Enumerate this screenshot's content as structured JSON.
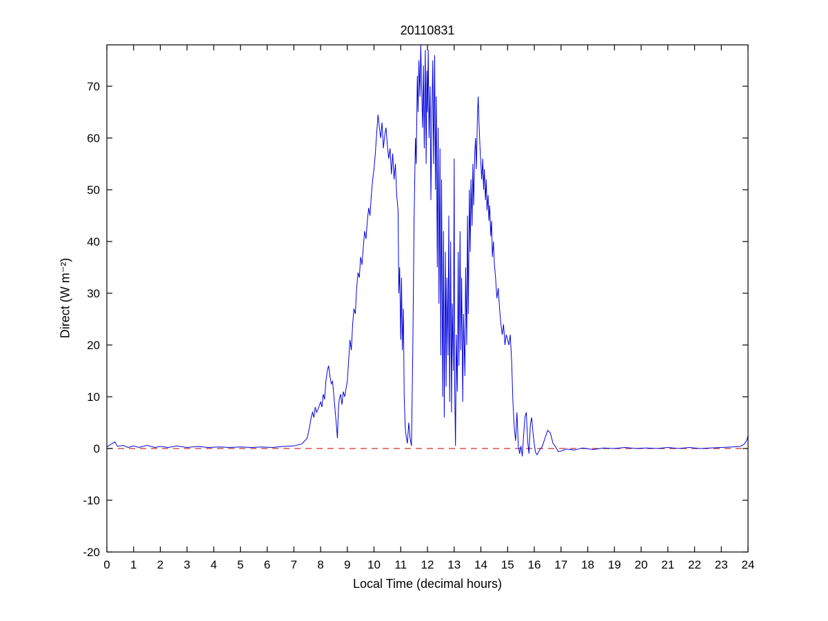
{
  "figure": {
    "title": "20110831",
    "xlabel": "Local Time (decimal hours)",
    "ylabel": "Direct (W m⁻²)"
  },
  "chart_data": {
    "type": "line",
    "title": "20110831",
    "xlabel": "Local Time (decimal hours)",
    "ylabel": "Direct (W m⁻²)",
    "xlim": [
      0,
      24
    ],
    "ylim": [
      -20,
      78
    ],
    "xticks": [
      0,
      1,
      2,
      3,
      4,
      5,
      6,
      7,
      8,
      9,
      10,
      11,
      12,
      13,
      14,
      15,
      16,
      17,
      18,
      19,
      20,
      21,
      22,
      23,
      24
    ],
    "yticks": [
      -20,
      -10,
      0,
      10,
      20,
      30,
      40,
      50,
      60,
      70
    ],
    "grid": false,
    "legend": "none",
    "line_color": "#0000dd",
    "axis_color": "#000000",
    "zero_line": {
      "y": 0,
      "color": "#cc3322",
      "style": "dashed",
      "dash": [
        9,
        7
      ]
    },
    "series": [
      {
        "name": "Direct",
        "points": [
          [
            0,
            0.3
          ],
          [
            0.15,
            0.8
          ],
          [
            0.3,
            1.3
          ],
          [
            0.4,
            0.4
          ],
          [
            0.6,
            0.6
          ],
          [
            0.8,
            0.2
          ],
          [
            1,
            0.5
          ],
          [
            1.2,
            0.2
          ],
          [
            1.5,
            0.6
          ],
          [
            1.8,
            0.2
          ],
          [
            2,
            0.4
          ],
          [
            2.3,
            0.2
          ],
          [
            2.6,
            0.5
          ],
          [
            3,
            0.2
          ],
          [
            3.4,
            0.4
          ],
          [
            3.8,
            0.2
          ],
          [
            4.2,
            0.3
          ],
          [
            4.6,
            0.2
          ],
          [
            5,
            0.3
          ],
          [
            5.4,
            0.2
          ],
          [
            5.8,
            0.3
          ],
          [
            6.2,
            0.2
          ],
          [
            6.6,
            0.4
          ],
          [
            7,
            0.5
          ],
          [
            7.3,
            0.9
          ],
          [
            7.5,
            2
          ],
          [
            7.6,
            4.5
          ],
          [
            7.65,
            6
          ],
          [
            7.7,
            7
          ],
          [
            7.75,
            6
          ],
          [
            7.8,
            8
          ],
          [
            7.85,
            7
          ],
          [
            7.9,
            7.5
          ],
          [
            8,
            9
          ],
          [
            8.05,
            8
          ],
          [
            8.1,
            10.5
          ],
          [
            8.15,
            9.5
          ],
          [
            8.2,
            13
          ],
          [
            8.25,
            15
          ],
          [
            8.3,
            16
          ],
          [
            8.35,
            14
          ],
          [
            8.4,
            12.5
          ],
          [
            8.45,
            13
          ],
          [
            8.5,
            10
          ],
          [
            8.55,
            7
          ],
          [
            8.6,
            4
          ],
          [
            8.63,
            2
          ],
          [
            8.67,
            8
          ],
          [
            8.7,
            9.5
          ],
          [
            8.75,
            10.5
          ],
          [
            8.8,
            8.5
          ],
          [
            8.85,
            11
          ],
          [
            8.9,
            10
          ],
          [
            8.95,
            11.5
          ],
          [
            9,
            13
          ],
          [
            9.05,
            17
          ],
          [
            9.1,
            21
          ],
          [
            9.15,
            19
          ],
          [
            9.2,
            24
          ],
          [
            9.25,
            27
          ],
          [
            9.3,
            26
          ],
          [
            9.35,
            31
          ],
          [
            9.4,
            34
          ],
          [
            9.45,
            33
          ],
          [
            9.5,
            37
          ],
          [
            9.55,
            35.5
          ],
          [
            9.6,
            39
          ],
          [
            9.65,
            42
          ],
          [
            9.7,
            40.5
          ],
          [
            9.75,
            44
          ],
          [
            9.8,
            46.5
          ],
          [
            9.85,
            45
          ],
          [
            9.9,
            49
          ],
          [
            9.95,
            52
          ],
          [
            10,
            54
          ],
          [
            10.05,
            57
          ],
          [
            10.1,
            61
          ],
          [
            10.15,
            64.5
          ],
          [
            10.2,
            62
          ],
          [
            10.25,
            60
          ],
          [
            10.3,
            63
          ],
          [
            10.35,
            58
          ],
          [
            10.4,
            60.5
          ],
          [
            10.45,
            62
          ],
          [
            10.5,
            58.5
          ],
          [
            10.55,
            56
          ],
          [
            10.6,
            58
          ],
          [
            10.65,
            53
          ],
          [
            10.7,
            57
          ],
          [
            10.75,
            52
          ],
          [
            10.8,
            55
          ],
          [
            10.85,
            49
          ],
          [
            10.9,
            46
          ],
          [
            10.93,
            30
          ],
          [
            10.96,
            35
          ],
          [
            11,
            21
          ],
          [
            11.03,
            33
          ],
          [
            11.06,
            19
          ],
          [
            11.1,
            27
          ],
          [
            11.13,
            10
          ],
          [
            11.17,
            4
          ],
          [
            11.2,
            2.5
          ],
          [
            11.25,
            1
          ],
          [
            11.3,
            5
          ],
          [
            11.35,
            2
          ],
          [
            11.4,
            0.5
          ],
          [
            11.45,
            18
          ],
          [
            11.5,
            44
          ],
          [
            11.55,
            60
          ],
          [
            11.58,
            55
          ],
          [
            11.62,
            72
          ],
          [
            11.65,
            65
          ],
          [
            11.68,
            75
          ],
          [
            11.72,
            68
          ],
          [
            11.75,
            78
          ],
          [
            11.78,
            70
          ],
          [
            11.82,
            62
          ],
          [
            11.85,
            74
          ],
          [
            11.88,
            58
          ],
          [
            11.92,
            77
          ],
          [
            11.95,
            55
          ],
          [
            11.98,
            73
          ],
          [
            12,
            65
          ],
          [
            12.03,
            77
          ],
          [
            12.06,
            60
          ],
          [
            12.1,
            70
          ],
          [
            12.13,
            48
          ],
          [
            12.17,
            66
          ],
          [
            12.2,
            75
          ],
          [
            12.23,
            55
          ],
          [
            12.27,
            76
          ],
          [
            12.3,
            50
          ],
          [
            12.33,
            68
          ],
          [
            12.37,
            35
          ],
          [
            12.4,
            62
          ],
          [
            12.43,
            28
          ],
          [
            12.47,
            58
          ],
          [
            12.5,
            18
          ],
          [
            12.53,
            52
          ],
          [
            12.57,
            10
          ],
          [
            12.6,
            42
          ],
          [
            12.63,
            6
          ],
          [
            12.67,
            38
          ],
          [
            12.7,
            12
          ],
          [
            12.73,
            33
          ],
          [
            12.77,
            18
          ],
          [
            12.8,
            45
          ],
          [
            12.83,
            9
          ],
          [
            12.87,
            40
          ],
          [
            12.9,
            7
          ],
          [
            12.93,
            28
          ],
          [
            12.97,
            15
          ],
          [
            13,
            56
          ],
          [
            13.02,
            12
          ],
          [
            13.05,
            0.5
          ],
          [
            13.08,
            22
          ],
          [
            13.12,
            11
          ],
          [
            13.15,
            38
          ],
          [
            13.18,
            16
          ],
          [
            13.22,
            42
          ],
          [
            13.25,
            19
          ],
          [
            13.28,
            33
          ],
          [
            13.32,
            9
          ],
          [
            13.35,
            26
          ],
          [
            13.4,
            14
          ],
          [
            13.43,
            35
          ],
          [
            13.47,
            20
          ],
          [
            13.5,
            45
          ],
          [
            13.53,
            26
          ],
          [
            13.57,
            50
          ],
          [
            13.6,
            38
          ],
          [
            13.63,
            52
          ],
          [
            13.67,
            43
          ],
          [
            13.7,
            55
          ],
          [
            13.73,
            47
          ],
          [
            13.77,
            57
          ],
          [
            13.8,
            60
          ],
          [
            13.83,
            54
          ],
          [
            13.87,
            64
          ],
          [
            13.9,
            68
          ],
          [
            13.93,
            63
          ],
          [
            13.97,
            58
          ],
          [
            14,
            55
          ],
          [
            14.03,
            52
          ],
          [
            14.07,
            56
          ],
          [
            14.1,
            50
          ],
          [
            14.13,
            54
          ],
          [
            14.17,
            48
          ],
          [
            14.2,
            52
          ],
          [
            14.23,
            46
          ],
          [
            14.27,
            49
          ],
          [
            14.3,
            44
          ],
          [
            14.33,
            47
          ],
          [
            14.37,
            41
          ],
          [
            14.4,
            44
          ],
          [
            14.43,
            37
          ],
          [
            14.47,
            40
          ],
          [
            14.5,
            36
          ],
          [
            14.55,
            33
          ],
          [
            14.6,
            29
          ],
          [
            14.65,
            31
          ],
          [
            14.7,
            27
          ],
          [
            14.75,
            24
          ],
          [
            14.8,
            22
          ],
          [
            14.85,
            24
          ],
          [
            14.9,
            20
          ],
          [
            14.95,
            22
          ],
          [
            15,
            21
          ],
          [
            15.05,
            20
          ],
          [
            15.1,
            22
          ],
          [
            15.15,
            17
          ],
          [
            15.2,
            9
          ],
          [
            15.25,
            4
          ],
          [
            15.3,
            1.5
          ],
          [
            15.35,
            7
          ],
          [
            15.4,
            0.5
          ],
          [
            15.45,
            -1
          ],
          [
            15.5,
            0.5
          ],
          [
            15.55,
            -1.5
          ],
          [
            15.6,
            2.5
          ],
          [
            15.65,
            6
          ],
          [
            15.7,
            7
          ],
          [
            15.75,
            1.5
          ],
          [
            15.8,
            -1
          ],
          [
            15.85,
            4.5
          ],
          [
            15.9,
            6
          ],
          [
            15.95,
            3
          ],
          [
            16,
            0.8
          ],
          [
            16.05,
            -0.8
          ],
          [
            16.1,
            -1.2
          ],
          [
            16.2,
            -0.3
          ],
          [
            16.3,
            0.4
          ],
          [
            16.4,
            2
          ],
          [
            16.5,
            3.5
          ],
          [
            16.6,
            3
          ],
          [
            16.7,
            1
          ],
          [
            16.8,
            0.3
          ],
          [
            16.9,
            -0.6
          ],
          [
            17,
            -0.5
          ],
          [
            17.2,
            -0.1
          ],
          [
            17.5,
            -0.3
          ],
          [
            17.8,
            0.1
          ],
          [
            18.2,
            -0.2
          ],
          [
            18.6,
            0.1
          ],
          [
            19,
            0
          ],
          [
            19.4,
            0.2
          ],
          [
            19.8,
            0
          ],
          [
            20.2,
            0.1
          ],
          [
            20.6,
            0
          ],
          [
            21,
            0.2
          ],
          [
            21.4,
            0
          ],
          [
            21.8,
            0.2
          ],
          [
            22.2,
            0
          ],
          [
            22.6,
            0.1
          ],
          [
            23,
            0.2
          ],
          [
            23.4,
            0.3
          ],
          [
            23.7,
            0.4
          ],
          [
            23.85,
            0.8
          ],
          [
            23.95,
            1.5
          ],
          [
            24,
            2.5
          ]
        ]
      }
    ]
  }
}
